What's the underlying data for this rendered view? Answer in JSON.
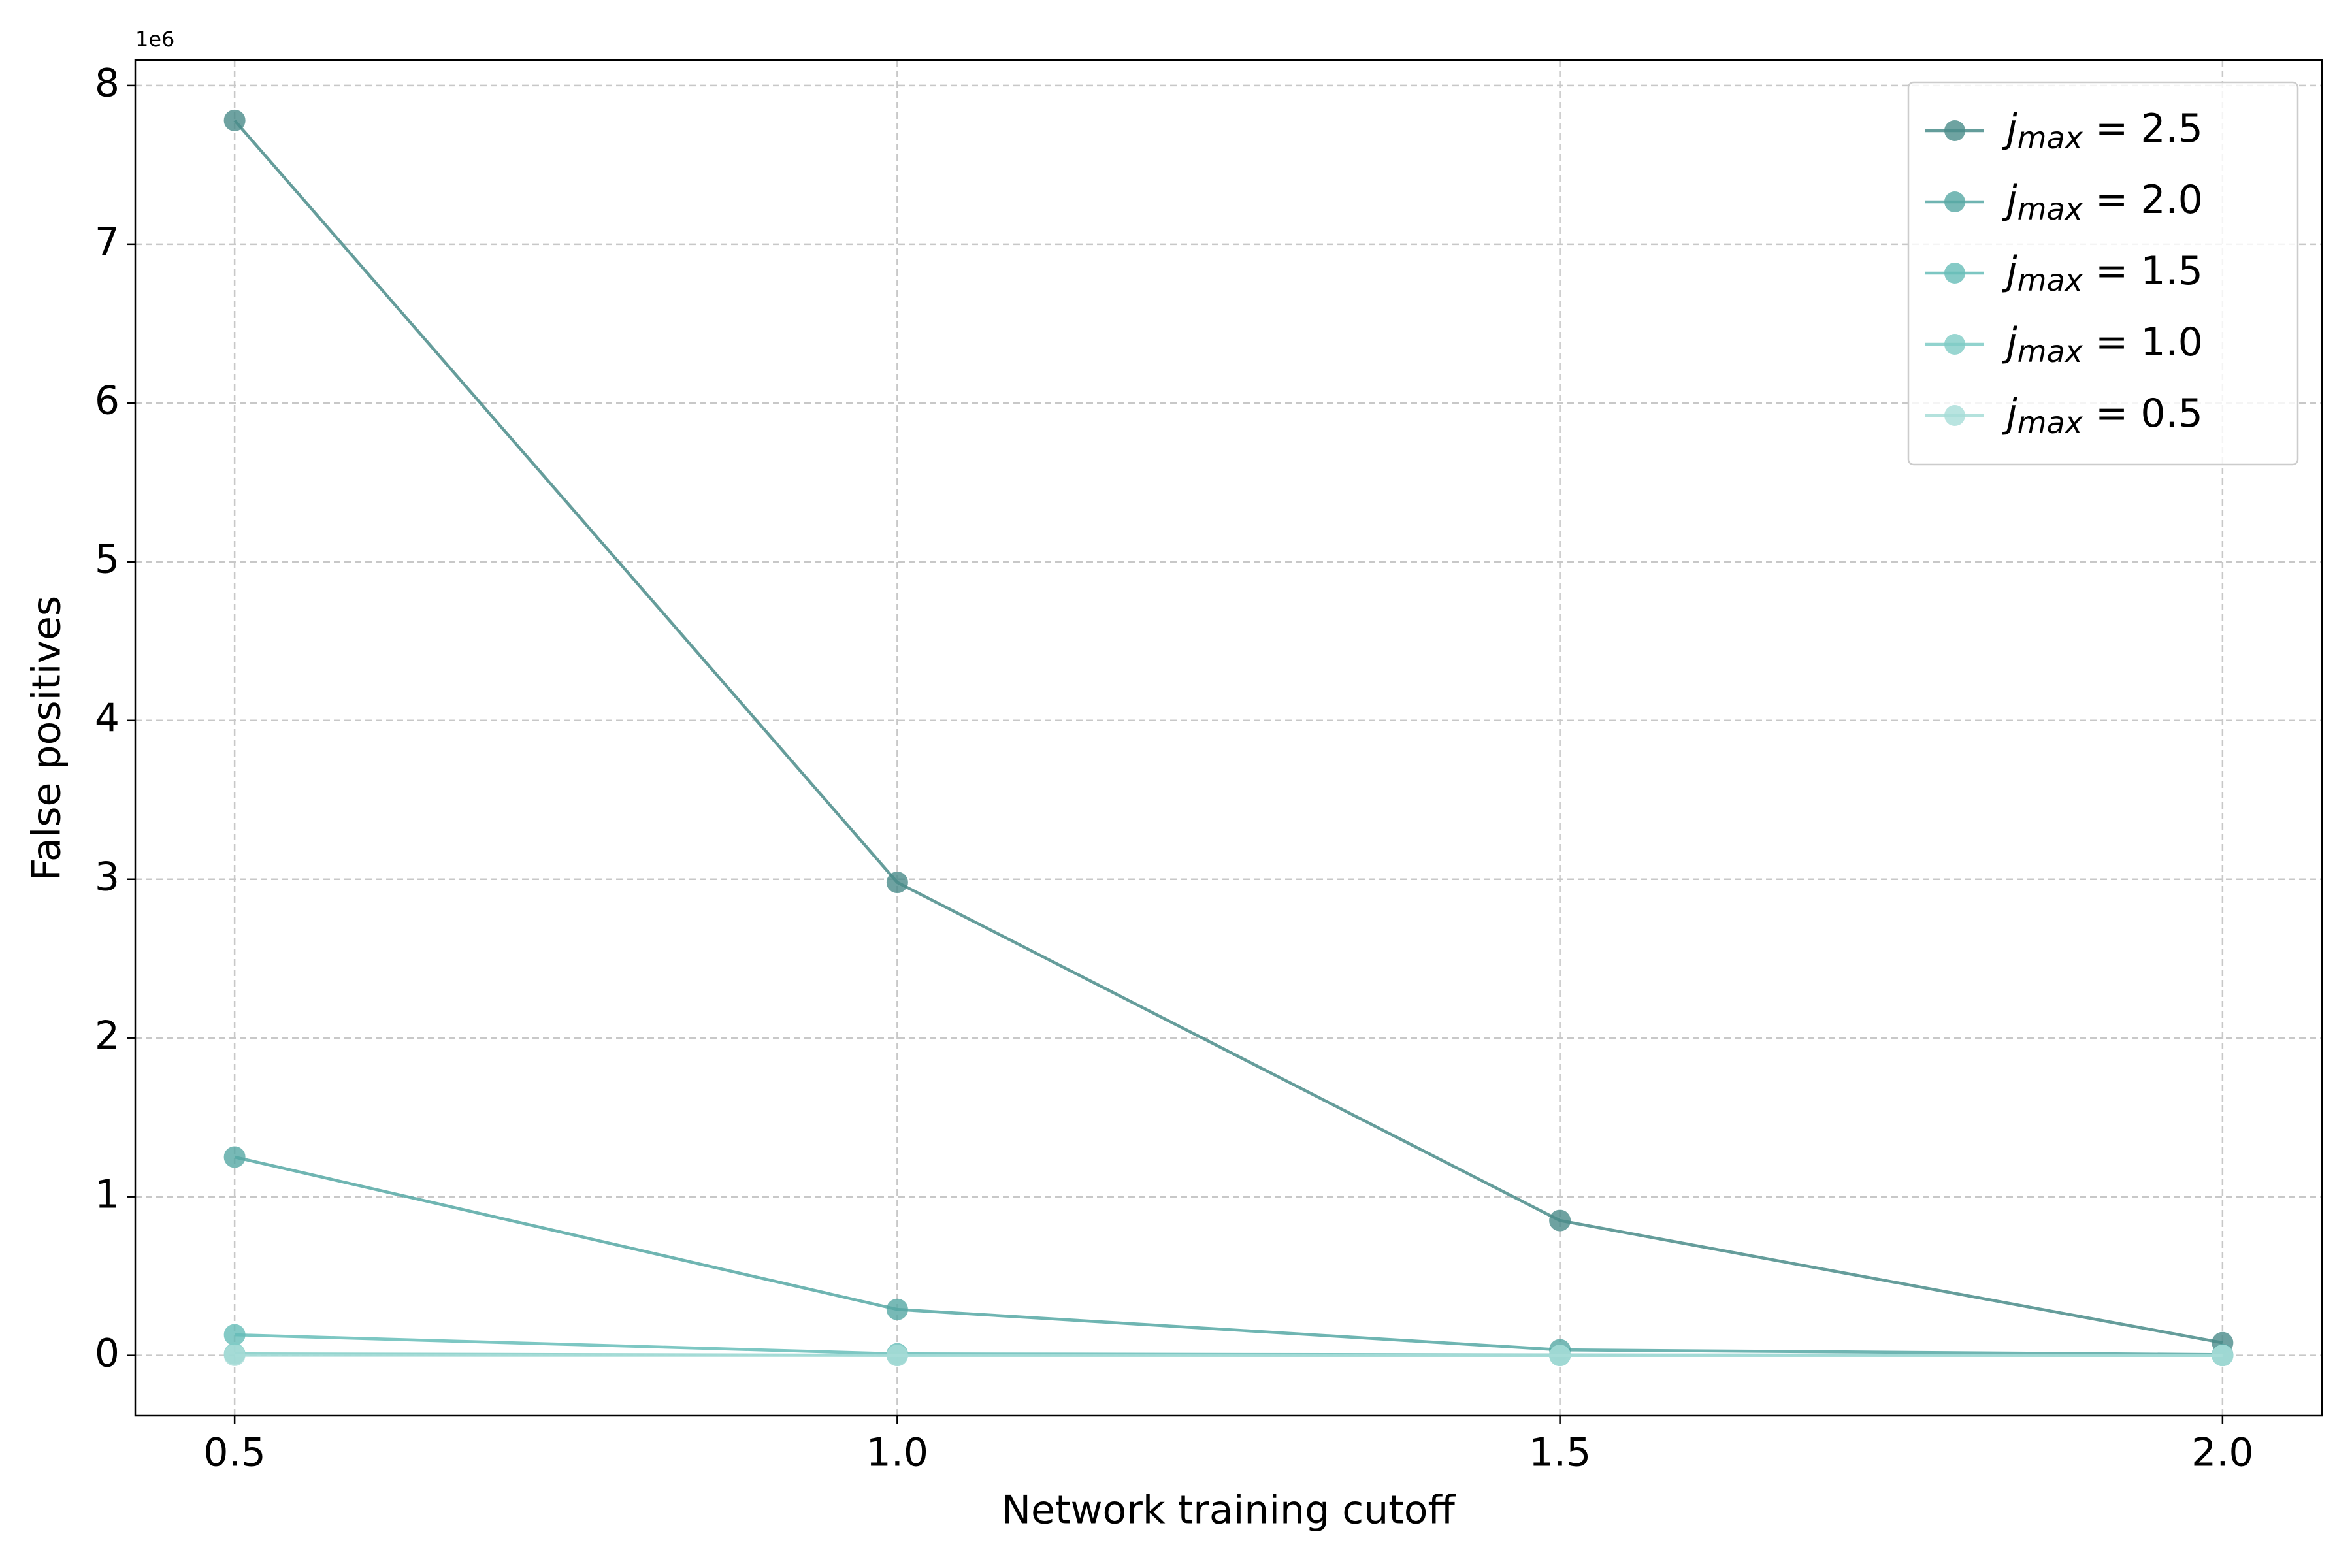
{
  "chart_data": {
    "type": "line",
    "x_label": "Network training cutoff",
    "y_label": "False positives",
    "y_offset_label": "1e6",
    "x": [
      0.5,
      1.0,
      1.5,
      2.0
    ],
    "series": [
      {
        "name": "jmax = 2.5",
        "color": "#4a8c8a",
        "values": [
          7.78,
          2.98,
          0.85,
          0.08
        ]
      },
      {
        "name": "jmax = 2.0",
        "color": "#56a8a4",
        "values": [
          1.25,
          0.29,
          0.035,
          0.005
        ]
      },
      {
        "name": "jmax = 1.5",
        "color": "#66bdb8",
        "values": [
          0.13,
          0.01,
          0.003,
          0.0005
        ]
      },
      {
        "name": "jmax = 1.0",
        "color": "#80ccc6",
        "values": [
          0.01,
          0.001,
          0.0002,
          0.0001
        ]
      },
      {
        "name": "jmax = 0.5",
        "color": "#a8ddd8",
        "values": [
          0.001,
          0.0001,
          0.0001,
          0.0001
        ]
      }
    ],
    "xlim": [
      0.425,
      2.075
    ],
    "xticks": [
      {
        "value": 0.5,
        "label": "0.5"
      },
      {
        "value": 1.0,
        "label": "1.0"
      },
      {
        "value": 1.5,
        "label": "1.5"
      },
      {
        "value": 2.0,
        "label": "2.0"
      }
    ],
    "ylim": [
      -0.38,
      8.16
    ],
    "yticks": [
      0,
      1,
      2,
      3,
      4,
      5,
      6,
      7,
      8
    ],
    "grid": true,
    "legend": "upper right"
  }
}
